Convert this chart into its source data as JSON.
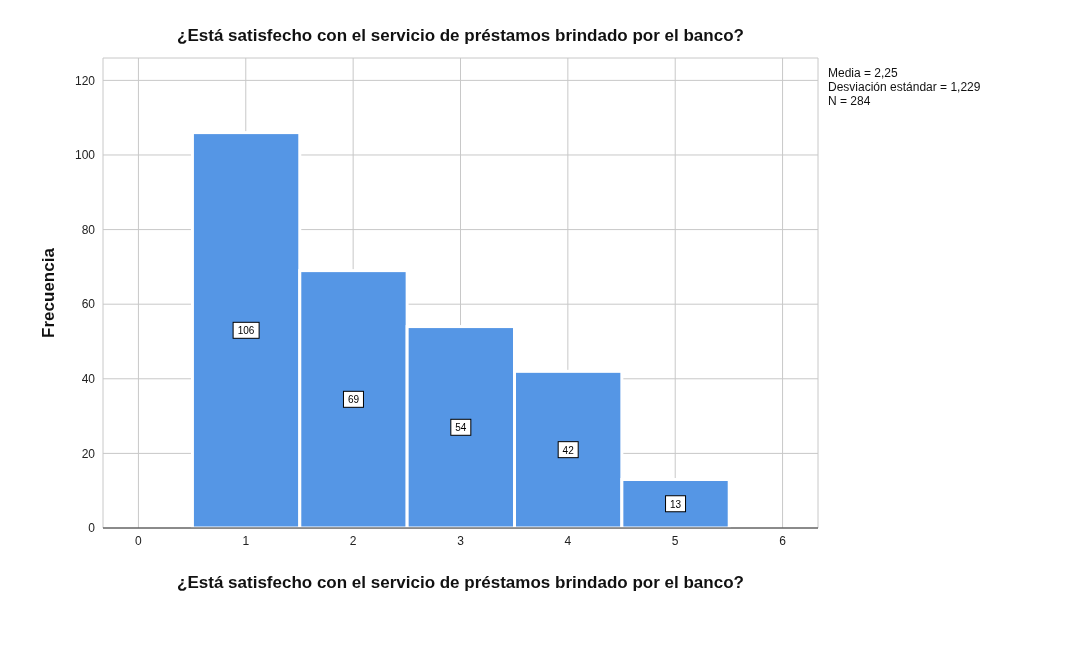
{
  "chart_data": {
    "type": "histogram",
    "title": "¿Está satisfecho con el servicio de préstamos brindado por el banco?",
    "xlabel": "¿Está satisfecho con el servicio de préstamos brindado por el banco?",
    "ylabel": "Frecuencia",
    "bins": [
      0.5,
      1.5,
      2.5,
      3.5,
      4.5,
      5.5
    ],
    "values": [
      106,
      69,
      54,
      42,
      13
    ],
    "color": "#5596e5",
    "xlim": [
      -0.33,
      6.33
    ],
    "xticks": [
      0,
      1,
      2,
      3,
      4,
      5,
      6
    ],
    "ylim": [
      0,
      126
    ],
    "yticks": [
      0,
      20,
      40,
      60,
      80,
      100,
      120
    ],
    "grid": true,
    "data_labels": true,
    "annotations": [
      "Media = 2,25",
      "Desviación estándar = 1,229",
      "N = 284"
    ]
  }
}
